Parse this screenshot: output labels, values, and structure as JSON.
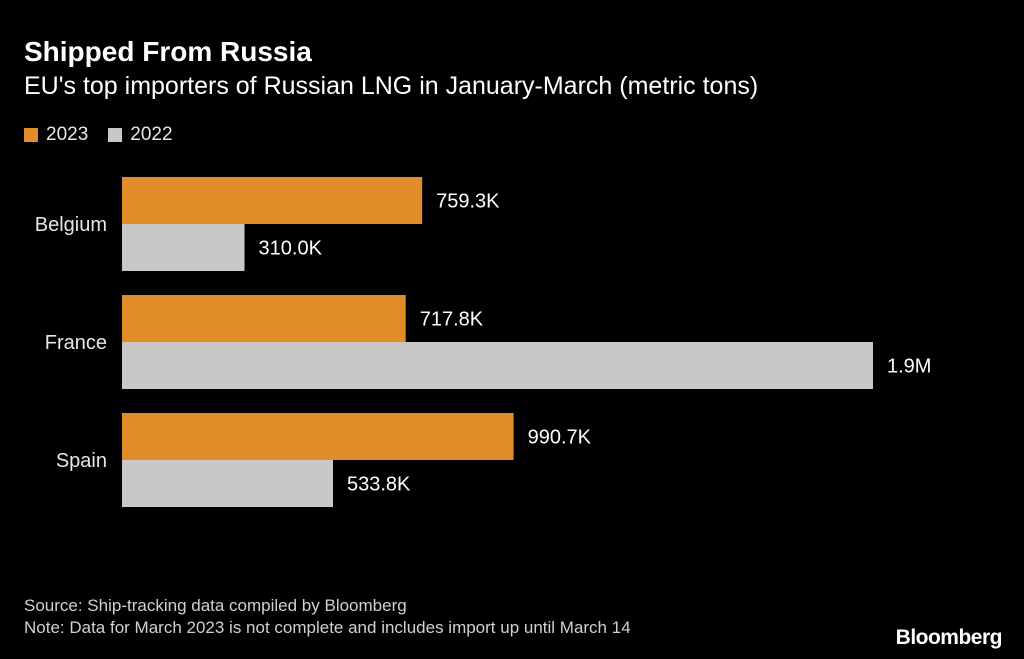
{
  "chart_data": {
    "type": "bar",
    "orientation": "horizontal",
    "title": "Shipped From Russia",
    "subtitle": "EU's top importers of Russian LNG in January-March (metric tons)",
    "categories": [
      "Belgium",
      "France",
      "Spain"
    ],
    "series": [
      {
        "name": "2023",
        "color": "#e08c29",
        "values": [
          759300,
          717800,
          990700
        ],
        "labels": [
          "759.3K",
          "717.8K",
          "990.7K"
        ]
      },
      {
        "name": "2022",
        "color": "#c8c8c8",
        "values": [
          310000,
          1900000,
          533800
        ],
        "labels": [
          "310.0K",
          "1.9M",
          "533.8K"
        ]
      }
    ],
    "xlim": [
      0,
      1900000
    ],
    "xlabel": "",
    "ylabel": "",
    "legend": "top-left",
    "grid": false
  },
  "footer": {
    "source": "Source: Ship-tracking data compiled by Bloomberg",
    "note": "Note: Data for March 2023 is not complete and includes import up until March 14",
    "brand": "Bloomberg"
  }
}
